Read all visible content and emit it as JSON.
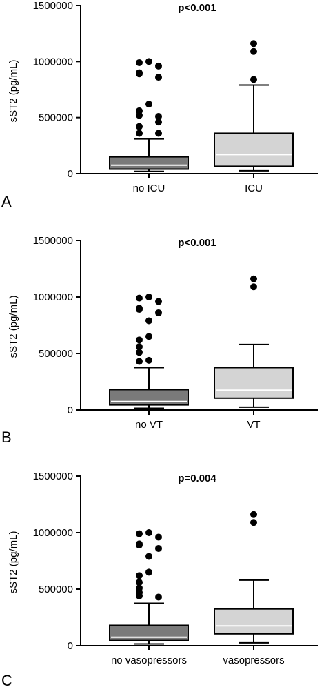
{
  "figure": {
    "ylabel": "sST2 (pg/mL)"
  },
  "colors": {
    "group1_box": "#7a7a7a",
    "group2_box": "#d4d4d4",
    "outlier": "#000000",
    "median_line": "#ffffff"
  },
  "chart_data": [
    {
      "type": "box",
      "panel": "A",
      "pvalue": "p<0.001",
      "ylabel": "sST2 (pg/mL)",
      "ylim": [
        0,
        1500000
      ],
      "yticks": [
        "0",
        "500000",
        "1000000",
        "1500000"
      ],
      "categories": [
        "no ICU",
        "ICU"
      ],
      "groups": [
        {
          "name": "no ICU",
          "min": 20000,
          "q1": 40000,
          "median": 75000,
          "q3": 150000,
          "max": 310000,
          "outliers": [
            1000000,
            990000,
            960000,
            900000,
            890000,
            860000,
            620000,
            560000,
            520000,
            510000,
            460000,
            420000,
            360000,
            360000
          ]
        },
        {
          "name": "ICU",
          "min": 25000,
          "q1": 65000,
          "median": 170000,
          "q3": 360000,
          "max": 790000,
          "outliers": [
            1160000,
            1090000,
            840000
          ]
        }
      ]
    },
    {
      "type": "box",
      "panel": "B",
      "pvalue": "p<0.001",
      "ylabel": "sST2 (pg/mL)",
      "ylim": [
        0,
        1500000
      ],
      "yticks": [
        "0",
        "500000",
        "1000000",
        "1500000"
      ],
      "categories": [
        "no VT",
        "VT"
      ],
      "groups": [
        {
          "name": "no VT",
          "min": 15000,
          "q1": 45000,
          "median": 75000,
          "q3": 180000,
          "max": 375000,
          "outliers": [
            1000000,
            990000,
            960000,
            900000,
            890000,
            860000,
            790000,
            650000,
            620000,
            560000,
            510000,
            440000,
            430000
          ]
        },
        {
          "name": "VT",
          "min": 25000,
          "q1": 105000,
          "median": 175000,
          "q3": 375000,
          "max": 580000,
          "outliers": [
            1160000,
            1090000
          ]
        }
      ]
    },
    {
      "type": "box",
      "panel": "C",
      "pvalue": "p=0.004",
      "ylabel": "sST2 (pg/mL)",
      "ylim": [
        0,
        1500000
      ],
      "yticks": [
        "0",
        "500000",
        "1000000",
        "1500000"
      ],
      "categories": [
        "no vasopressors",
        "vasopressors"
      ],
      "groups": [
        {
          "name": "no vasopressors",
          "min": 15000,
          "q1": 45000,
          "median": 75000,
          "q3": 180000,
          "max": 375000,
          "outliers": [
            1000000,
            990000,
            960000,
            900000,
            890000,
            860000,
            790000,
            650000,
            620000,
            560000,
            510000,
            470000,
            440000,
            430000
          ]
        },
        {
          "name": "vasopressors",
          "min": 25000,
          "q1": 105000,
          "median": 175000,
          "q3": 325000,
          "max": 580000,
          "outliers": [
            1160000,
            1090000
          ]
        }
      ]
    }
  ]
}
